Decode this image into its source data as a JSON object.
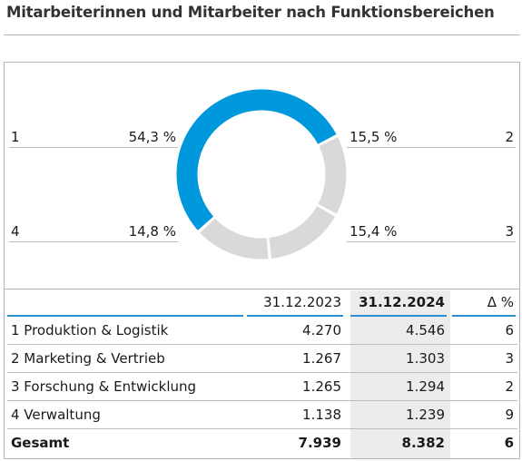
{
  "title": "Mitarbeiterinnen und Mitarbeiter nach Funktionsbereichen",
  "chart_data": {
    "type": "pie",
    "style": "donut",
    "slices": [
      {
        "id": "1",
        "percent_label": "54,3 %",
        "value": 54.3,
        "color": "#0098dc"
      },
      {
        "id": "2",
        "percent_label": "15,5 %",
        "value": 15.5,
        "color": "#d9d9d9"
      },
      {
        "id": "3",
        "percent_label": "15,4 %",
        "value": 15.4,
        "color": "#d9d9d9"
      },
      {
        "id": "4",
        "percent_label": "14,8 %",
        "value": 14.8,
        "color": "#d9d9d9"
      }
    ]
  },
  "table": {
    "headers": [
      "",
      "31.12.2023",
      "31.12.2024",
      "Δ %"
    ],
    "rows": [
      {
        "label": "1 Produktion & Logistik",
        "v2023": "4.270",
        "v2024": "4.546",
        "delta": "6"
      },
      {
        "label": "2 Marketing & Vertrieb",
        "v2023": "1.267",
        "v2024": "1.303",
        "delta": "3"
      },
      {
        "label": "3 Forschung & Entwicklung",
        "v2023": "1.265",
        "v2024": "1.294",
        "delta": "2"
      },
      {
        "label": "4 Verwaltung",
        "v2023": "1.138",
        "v2024": "1.239",
        "delta": "9"
      }
    ],
    "total": {
      "label": "Gesamt",
      "v2023": "7.939",
      "v2024": "8.382",
      "delta": "6"
    }
  },
  "colors": {
    "accent": "#0098dc",
    "neutral": "#d9d9d9",
    "shade": "#ececec"
  }
}
